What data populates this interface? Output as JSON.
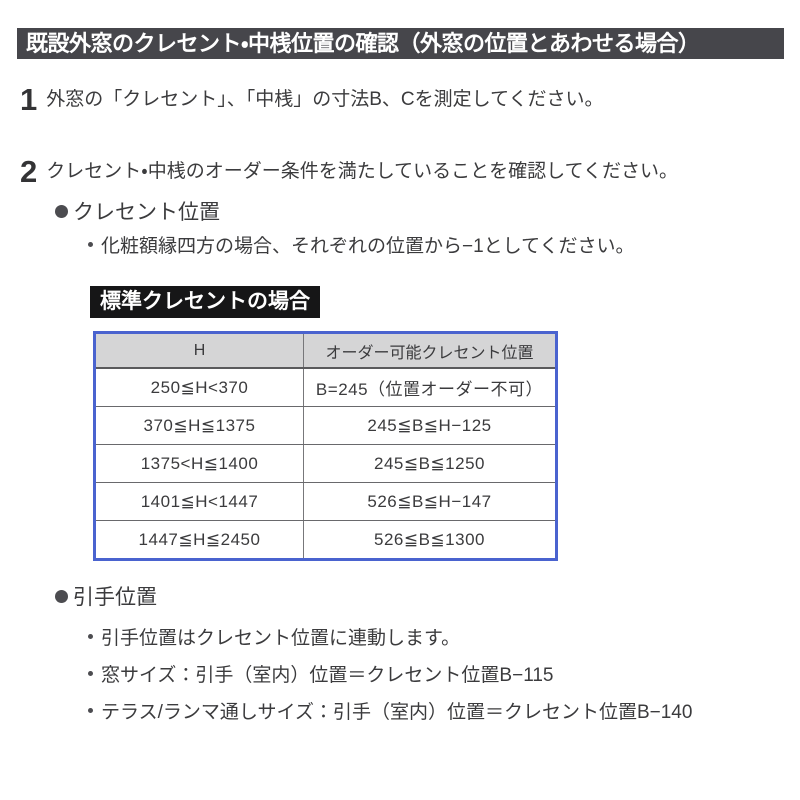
{
  "banner": {
    "title": "既設外窓のクレセント・中桟位置の確認（外窓の位置とあわせる場合）"
  },
  "steps": [
    {
      "number": "1",
      "text": "外窓の「クレセント」、「中桟」の寸法B、Cを測定してください。"
    },
    {
      "number": "2",
      "text": "クレセント・中桟のオーダー条件を満たしていることを確認してください。"
    }
  ],
  "crescent_section": {
    "heading": "クレセント位置",
    "note": "化粧額縁四方の場合、それぞれの位置から−1としてください。",
    "table_label": "標準クレセントの場合",
    "table": {
      "headers": [
        "H",
        "オーダー可能クレセント位置"
      ],
      "rows": [
        [
          "250≦H<370",
          "B=245（位置オーダー不可）"
        ],
        [
          "370≦H≦1375",
          "245≦B≦H−125"
        ],
        [
          "1375<H≦1400",
          "245≦B≦1250"
        ],
        [
          "1401≦H<1447",
          "526≦B≦H−147"
        ],
        [
          "1447≦H≦2450",
          "526≦B≦1300"
        ]
      ]
    }
  },
  "handle_section": {
    "heading": "引手位置",
    "notes": [
      "引手位置はクレセント位置に連動します。",
      "窓サイズ：引手（室内）位置＝クレセント位置B−115",
      "テラス/ランマ通しサイズ：引手（室内）位置＝クレセント位置B−140"
    ]
  },
  "colors": {
    "banner_bg": "#46464b",
    "label_bg": "#161617",
    "table_border_blue": "#4a63cf",
    "table_header_bg": "#d5d5d6",
    "body_text": "#3b3b3d"
  }
}
